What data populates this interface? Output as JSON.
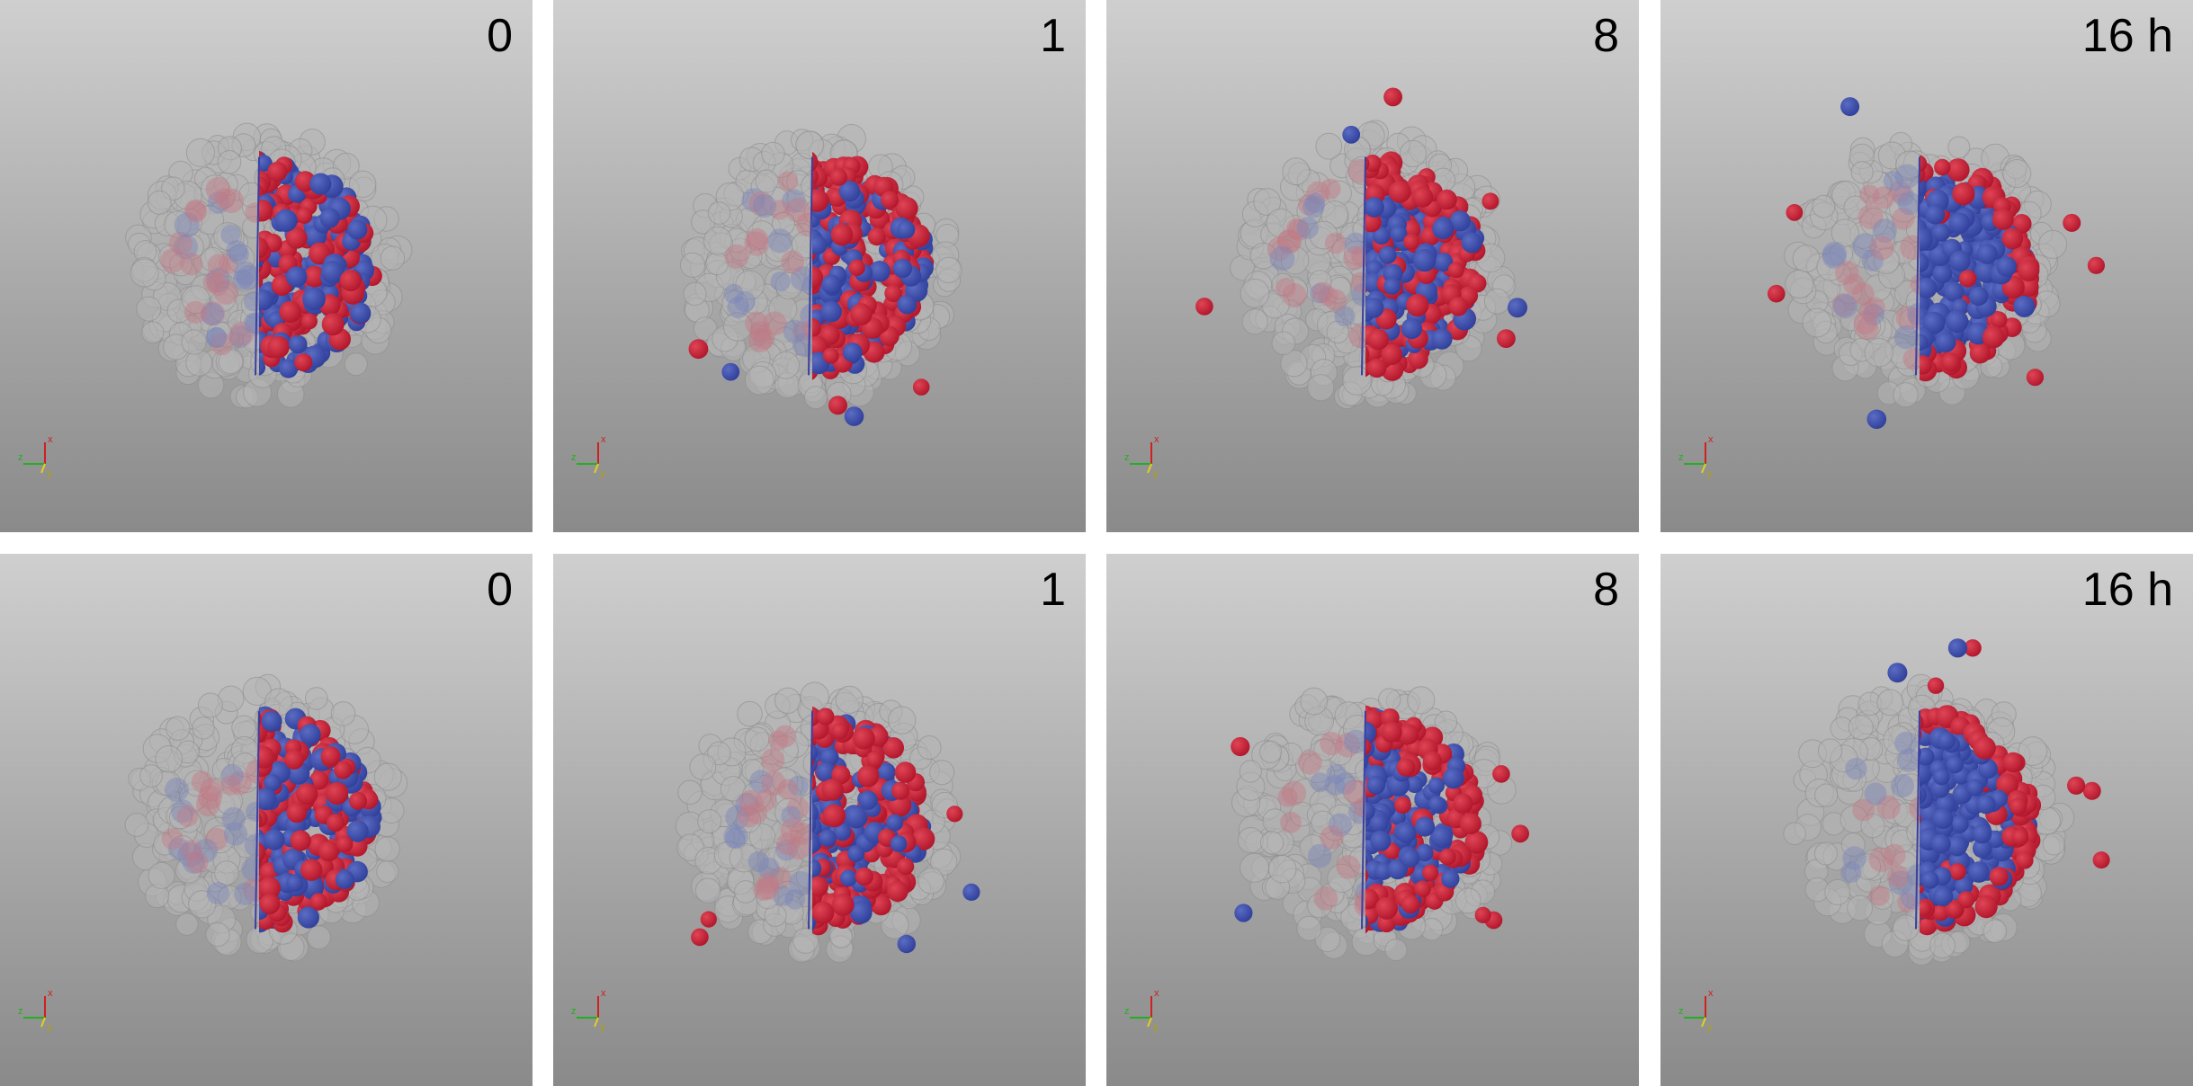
{
  "rows": [
    {
      "panels": [
        {
          "time_label": "0"
        },
        {
          "time_label": "1"
        },
        {
          "time_label": "8"
        },
        {
          "time_label": "16 h"
        }
      ]
    },
    {
      "panels": [
        {
          "time_label": "0"
        },
        {
          "time_label": "1"
        },
        {
          "time_label": "8"
        },
        {
          "time_label": "16 h"
        }
      ]
    }
  ],
  "axis_triad": {
    "x": "x",
    "y": "y",
    "z": "z"
  },
  "colors": {
    "outer_cells": "#b4b4b4",
    "red_cells": "#b0152a",
    "blue_cells": "#2f3f9a",
    "background_top": "#cfcfcf",
    "background_bottom": "#8a8a8a"
  }
}
